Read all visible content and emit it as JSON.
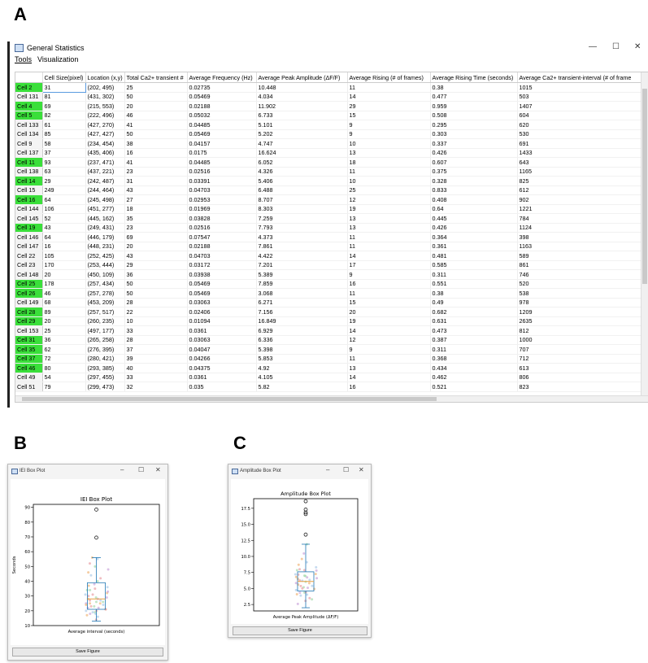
{
  "panels": {
    "a": "A",
    "b": "B",
    "c": "C"
  },
  "window_a": {
    "title": "General Statistics",
    "menu": [
      "Tools",
      "Visualization"
    ],
    "controls": {
      "minimize": "—",
      "maximize": "☐",
      "close": "✕"
    },
    "columns": [
      "",
      "Cell Size(pixel)",
      "Location (x,y)",
      "Total Ca2+ transient #",
      "Average Frequency (Hz)",
      "Average Peak Amplitude (ΔF/F)",
      "Average Rising (# of frames)",
      "Average Rising Time (seconds)",
      "Average Ca2+ transient-interval (# of frame"
    ],
    "highlight_color": "#3adf3a",
    "rows": [
      {
        "name": "Cell 2",
        "green": true,
        "size": "31",
        "loc": "(202, 495)",
        "total": "25",
        "freq": "0.02735",
        "amp": "10.448",
        "rise": "11",
        "rise_t": "0.38",
        "interval": "1015"
      },
      {
        "name": "Cell 131",
        "green": false,
        "size": "81",
        "loc": "(431, 302)",
        "total": "50",
        "freq": "0.05469",
        "amp": "4.034",
        "rise": "14",
        "rise_t": "0.477",
        "interval": "503"
      },
      {
        "name": "Cell 4",
        "green": true,
        "size": "69",
        "loc": "(215, 553)",
        "total": "20",
        "freq": "0.02188",
        "amp": "11.902",
        "rise": "29",
        "rise_t": "0.959",
        "interval": "1407"
      },
      {
        "name": "Cell 5",
        "green": true,
        "size": "82",
        "loc": "(222, 496)",
        "total": "46",
        "freq": "0.05032",
        "amp": "6.733",
        "rise": "15",
        "rise_t": "0.508",
        "interval": "604"
      },
      {
        "name": "Cell 133",
        "green": false,
        "size": "61",
        "loc": "(427, 270)",
        "total": "41",
        "freq": "0.04485",
        "amp": "5.101",
        "rise": "9",
        "rise_t": "0.295",
        "interval": "620"
      },
      {
        "name": "Cell 134",
        "green": false,
        "size": "85",
        "loc": "(427, 427)",
        "total": "50",
        "freq": "0.05469",
        "amp": "5.202",
        "rise": "9",
        "rise_t": "0.303",
        "interval": "530"
      },
      {
        "name": "Cell 9",
        "green": false,
        "size": "58",
        "loc": "(234, 454)",
        "total": "38",
        "freq": "0.04157",
        "amp": "4.747",
        "rise": "10",
        "rise_t": "0.337",
        "interval": "691"
      },
      {
        "name": "Cell 137",
        "green": false,
        "size": "37",
        "loc": "(435, 406)",
        "total": "16",
        "freq": "0.0175",
        "amp": "16.624",
        "rise": "13",
        "rise_t": "0.426",
        "interval": "1433"
      },
      {
        "name": "Cell 11",
        "green": true,
        "size": "93",
        "loc": "(237, 471)",
        "total": "41",
        "freq": "0.04485",
        "amp": "6.052",
        "rise": "18",
        "rise_t": "0.607",
        "interval": "643"
      },
      {
        "name": "Cell 138",
        "green": false,
        "size": "63",
        "loc": "(437, 221)",
        "total": "23",
        "freq": "0.02516",
        "amp": "4.326",
        "rise": "11",
        "rise_t": "0.375",
        "interval": "1165"
      },
      {
        "name": "Cell 14",
        "green": true,
        "size": "29",
        "loc": "(242, 487)",
        "total": "31",
        "freq": "0.03391",
        "amp": "5.406",
        "rise": "10",
        "rise_t": "0.328",
        "interval": "825"
      },
      {
        "name": "Cell 15",
        "green": false,
        "size": "249",
        "loc": "(244, 464)",
        "total": "43",
        "freq": "0.04703",
        "amp": "6.488",
        "rise": "25",
        "rise_t": "0.833",
        "interval": "612"
      },
      {
        "name": "Cell 16",
        "green": true,
        "size": "64",
        "loc": "(245, 498)",
        "total": "27",
        "freq": "0.02953",
        "amp": "8.707",
        "rise": "12",
        "rise_t": "0.408",
        "interval": "902"
      },
      {
        "name": "Cell 144",
        "green": false,
        "size": "106",
        "loc": "(451, 277)",
        "total": "18",
        "freq": "0.01969",
        "amp": "8.303",
        "rise": "19",
        "rise_t": "0.64",
        "interval": "1221"
      },
      {
        "name": "Cell 145",
        "green": false,
        "size": "52",
        "loc": "(445, 162)",
        "total": "35",
        "freq": "0.03828",
        "amp": "7.259",
        "rise": "13",
        "rise_t": "0.445",
        "interval": "784"
      },
      {
        "name": "Cell 19",
        "green": true,
        "size": "43",
        "loc": "(249, 431)",
        "total": "23",
        "freq": "0.02516",
        "amp": "7.793",
        "rise": "13",
        "rise_t": "0.426",
        "interval": "1124"
      },
      {
        "name": "Cell 146",
        "green": false,
        "size": "64",
        "loc": "(446, 179)",
        "total": "69",
        "freq": "0.07547",
        "amp": "4.373",
        "rise": "11",
        "rise_t": "0.364",
        "interval": "398"
      },
      {
        "name": "Cell 147",
        "green": false,
        "size": "16",
        "loc": "(448, 231)",
        "total": "20",
        "freq": "0.02188",
        "amp": "7.861",
        "rise": "11",
        "rise_t": "0.361",
        "interval": "1163"
      },
      {
        "name": "Cell 22",
        "green": false,
        "size": "105",
        "loc": "(252, 425)",
        "total": "43",
        "freq": "0.04703",
        "amp": "4.422",
        "rise": "14",
        "rise_t": "0.481",
        "interval": "589"
      },
      {
        "name": "Cell 23",
        "green": false,
        "size": "170",
        "loc": "(253, 444)",
        "total": "29",
        "freq": "0.03172",
        "amp": "7.201",
        "rise": "17",
        "rise_t": "0.585",
        "interval": "861"
      },
      {
        "name": "Cell 148",
        "green": false,
        "size": "20",
        "loc": "(450, 109)",
        "total": "36",
        "freq": "0.03938",
        "amp": "5.389",
        "rise": "9",
        "rise_t": "0.311",
        "interval": "746"
      },
      {
        "name": "Cell 25",
        "green": true,
        "size": "178",
        "loc": "(257, 434)",
        "total": "50",
        "freq": "0.05469",
        "amp": "7.859",
        "rise": "16",
        "rise_t": "0.551",
        "interval": "520"
      },
      {
        "name": "Cell 26",
        "green": true,
        "size": "46",
        "loc": "(257, 278)",
        "total": "50",
        "freq": "0.05469",
        "amp": "3.068",
        "rise": "11",
        "rise_t": "0.38",
        "interval": "538"
      },
      {
        "name": "Cell 149",
        "green": false,
        "size": "68",
        "loc": "(453, 209)",
        "total": "28",
        "freq": "0.03063",
        "amp": "6.271",
        "rise": "15",
        "rise_t": "0.49",
        "interval": "978"
      },
      {
        "name": "Cell 28",
        "green": true,
        "size": "89",
        "loc": "(257, 517)",
        "total": "22",
        "freq": "0.02406",
        "amp": "7.156",
        "rise": "20",
        "rise_t": "0.682",
        "interval": "1209"
      },
      {
        "name": "Cell 29",
        "green": true,
        "size": "20",
        "loc": "(260, 235)",
        "total": "10",
        "freq": "0.01094",
        "amp": "16.849",
        "rise": "19",
        "rise_t": "0.631",
        "interval": "2635"
      },
      {
        "name": "Cell 153",
        "green": false,
        "size": "25",
        "loc": "(497, 177)",
        "total": "33",
        "freq": "0.0361",
        "amp": "6.929",
        "rise": "14",
        "rise_t": "0.473",
        "interval": "812"
      },
      {
        "name": "Cell 31",
        "green": true,
        "size": "36",
        "loc": "(265, 258)",
        "total": "28",
        "freq": "0.03063",
        "amp": "6.336",
        "rise": "12",
        "rise_t": "0.387",
        "interval": "1000"
      },
      {
        "name": "Cell 35",
        "green": true,
        "size": "62",
        "loc": "(276, 395)",
        "total": "37",
        "freq": "0.04047",
        "amp": "5.398",
        "rise": "9",
        "rise_t": "0.311",
        "interval": "707"
      },
      {
        "name": "Cell 37",
        "green": true,
        "size": "72",
        "loc": "(280, 421)",
        "total": "39",
        "freq": "0.04266",
        "amp": "5.853",
        "rise": "11",
        "rise_t": "0.368",
        "interval": "712"
      },
      {
        "name": "Cell 46",
        "green": true,
        "size": "80",
        "loc": "(293, 385)",
        "total": "40",
        "freq": "0.04375",
        "amp": "4.92",
        "rise": "13",
        "rise_t": "0.434",
        "interval": "613"
      },
      {
        "name": "Cell 49",
        "green": false,
        "size": "54",
        "loc": "(297, 455)",
        "total": "33",
        "freq": "0.0361",
        "amp": "4.105",
        "rise": "14",
        "rise_t": "0.462",
        "interval": "806"
      },
      {
        "name": "Cell 51",
        "green": false,
        "size": "79",
        "loc": "(299, 473)",
        "total": "32",
        "freq": "0.035",
        "amp": "5.82",
        "rise": "16",
        "rise_t": "0.521",
        "interval": "823"
      }
    ]
  },
  "window_b": {
    "title": "IEI Box Plot",
    "save_label": "Save Figure"
  },
  "window_c": {
    "title": "Amplitude Box Plot",
    "save_label": "Save Figure"
  },
  "chart_data": [
    {
      "type": "box",
      "title": "IEI Box Plot",
      "xlabel": "Average interval (seconds)",
      "ylabel": "Seconds",
      "ylim": [
        10,
        92
      ],
      "yticks": [
        10,
        20,
        30,
        40,
        50,
        60,
        70,
        80,
        90
      ],
      "box": {
        "whisker_low": 13,
        "q1": 21,
        "median": 28,
        "q3": 39,
        "whisker_high": 56
      },
      "outliers": [
        69.5,
        88.5
      ],
      "points": [
        14,
        16,
        17,
        18,
        19,
        20,
        20,
        21,
        22,
        23,
        23,
        24,
        25,
        25,
        26,
        27,
        27,
        28,
        28,
        29,
        30,
        31,
        32,
        33,
        34,
        35,
        36,
        37,
        38,
        40,
        42,
        44,
        46,
        48,
        50,
        52,
        55,
        56,
        22,
        26,
        31,
        19,
        24,
        29,
        34,
        21,
        18,
        25
      ]
    },
    {
      "type": "box",
      "title": "Amplitude Box Plot",
      "xlabel": "Average Peak Amplitude (ΔF/F)",
      "ylabel": "",
      "ylim": [
        1.5,
        19
      ],
      "yticks": [
        2.5,
        5.0,
        7.5,
        10.0,
        12.5,
        15.0,
        17.5
      ],
      "box": {
        "whisker_low": 2.0,
        "q1": 4.6,
        "median": 6.1,
        "q3": 7.6,
        "whisker_high": 11.9
      },
      "outliers": [
        13.4,
        16.6,
        16.85,
        17.3,
        18.6
      ],
      "points": [
        3.07,
        4.03,
        4.1,
        4.33,
        4.37,
        4.42,
        4.75,
        4.92,
        5.1,
        5.2,
        5.39,
        5.4,
        5.82,
        5.85,
        6.05,
        6.27,
        6.34,
        6.49,
        6.73,
        6.93,
        7.16,
        7.2,
        7.26,
        7.79,
        7.86,
        7.86,
        8.3,
        8.7,
        10.45,
        11.9,
        3.5,
        3.9,
        5.6,
        6.6,
        7.0,
        8.0,
        9.1,
        9.6,
        2.6,
        3.3,
        5.0,
        6.2,
        6.8
      ]
    }
  ]
}
